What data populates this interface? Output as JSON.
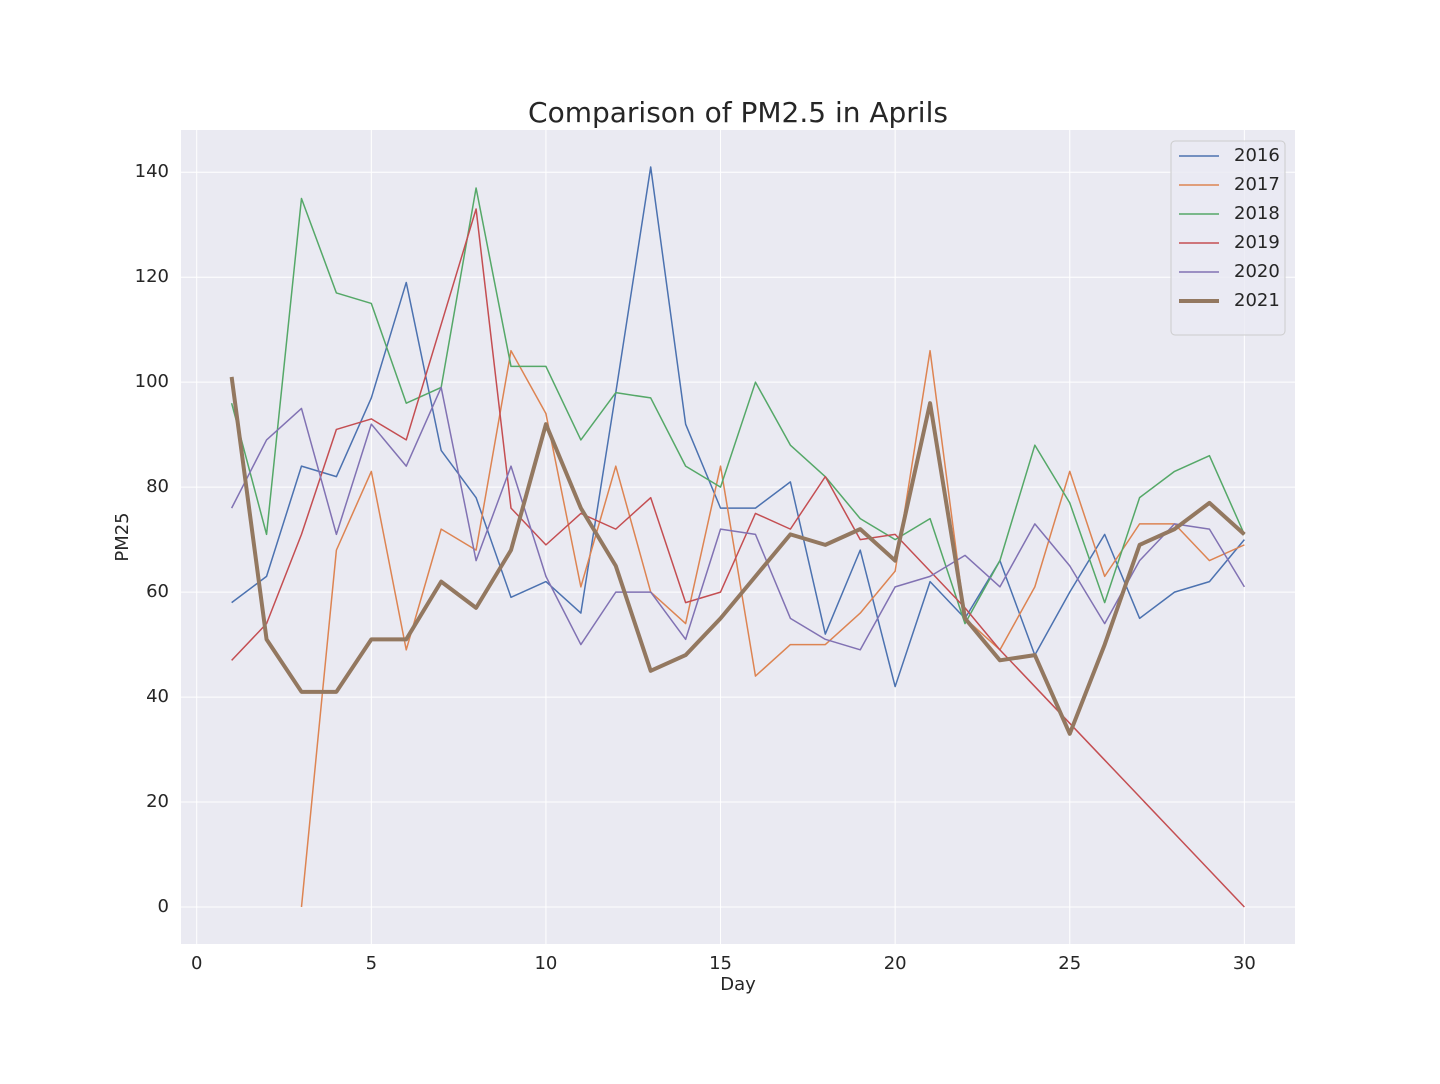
{
  "chart_data": {
    "type": "line",
    "title": "Comparison of PM2.5 in Aprils",
    "xlabel": "Day",
    "ylabel": "PM25",
    "x": [
      1,
      2,
      3,
      4,
      5,
      6,
      7,
      8,
      9,
      10,
      11,
      12,
      13,
      14,
      15,
      16,
      17,
      18,
      19,
      20,
      21,
      22,
      23,
      24,
      25,
      26,
      27,
      28,
      29,
      30
    ],
    "series": [
      {
        "name": "2016",
        "color": "#4c72b0",
        "width": 1.5,
        "values": [
          58,
          63,
          84,
          82,
          97,
          119,
          87,
          78,
          59,
          62,
          56,
          98,
          141,
          92,
          76,
          76,
          81,
          52,
          68,
          42,
          62,
          55,
          66,
          48,
          60,
          71,
          55,
          60,
          62,
          70
        ]
      },
      {
        "name": "2017",
        "color": "#dd8452",
        "width": 1.5,
        "values": [
          null,
          null,
          0,
          68,
          83,
          49,
          72,
          68,
          106,
          94,
          61,
          84,
          60,
          54,
          84,
          44,
          50,
          50,
          56,
          64,
          106,
          55,
          49,
          61,
          83,
          63,
          73,
          73,
          66,
          69
        ]
      },
      {
        "name": "2018",
        "color": "#55a868",
        "width": 1.5,
        "values": [
          96,
          71,
          135,
          117,
          115,
          96,
          99,
          137,
          103,
          103,
          89,
          98,
          97,
          84,
          80,
          100,
          88,
          82,
          74,
          70,
          74,
          54,
          66,
          88,
          77,
          58,
          78,
          83,
          86,
          71
        ]
      },
      {
        "name": "2019",
        "color": "#c44e52",
        "width": 1.5,
        "values": [
          47,
          54,
          71,
          91,
          93,
          89,
          111,
          133,
          76,
          69,
          75,
          72,
          78,
          58,
          60,
          75,
          72,
          82,
          70,
          71,
          64,
          57,
          49,
          42,
          35,
          28,
          21,
          14,
          7,
          0
        ]
      },
      {
        "name": "2020",
        "color": "#8172b3",
        "width": 1.5,
        "values": [
          76,
          89,
          95,
          71,
          92,
          84,
          99,
          66,
          84,
          63,
          50,
          60,
          60,
          51,
          72,
          71,
          55,
          51,
          49,
          61,
          63,
          67,
          61,
          73,
          65,
          54,
          66,
          73,
          72,
          61
        ]
      },
      {
        "name": "2021",
        "color": "#937860",
        "width": 4,
        "values": [
          101,
          51,
          41,
          41,
          51,
          51,
          62,
          57,
          68,
          92,
          76,
          65,
          45,
          48,
          55,
          63,
          71,
          69,
          72,
          66,
          96,
          55,
          47,
          48,
          33,
          50,
          69,
          72,
          77,
          71
        ]
      }
    ],
    "xlim": [
      -0.45,
      31.45
    ],
    "ylim": [
      -7.05,
      148.05
    ],
    "xticks": [
      0,
      5,
      10,
      15,
      20,
      25,
      30
    ],
    "yticks": [
      0,
      20,
      40,
      60,
      80,
      100,
      120,
      140
    ],
    "grid": true,
    "background": "#eaeaf2",
    "legend": "upper right"
  }
}
